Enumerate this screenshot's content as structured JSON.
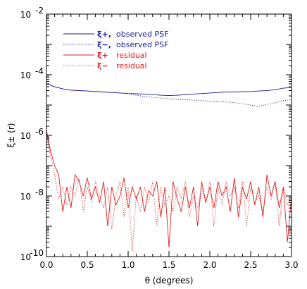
{
  "chart_data": {
    "type": "line",
    "xlabel": "θ (degrees)",
    "ylabel": "ξ± (r)",
    "xlim": [
      0,
      3
    ],
    "ylim": [
      1e-10,
      0.01
    ],
    "yscale": "log",
    "xticks": [
      "0.0",
      "0.5",
      "1.0",
      "1.5",
      "2.0",
      "2.5",
      "3.0"
    ],
    "yticks": [
      {
        "value": 1e-10,
        "label": "10",
        "exp": "-10"
      },
      {
        "value": 1e-08,
        "label": "10",
        "exp": "-8"
      },
      {
        "value": 1e-06,
        "label": "10",
        "exp": "-6"
      },
      {
        "value": 0.0001,
        "label": "10",
        "exp": "-4"
      },
      {
        "value": 0.01,
        "label": "10",
        "exp": "-2"
      }
    ],
    "legend_position": "top-left",
    "series": [
      {
        "name": "ξ+, observed PSF",
        "legend_symbol": "ξ+,",
        "legend_text": "observed PSF",
        "color": "#1a1aa0",
        "style": "solid",
        "x": [
          0.0,
          0.1,
          0.2,
          0.3,
          0.4,
          0.5,
          0.6,
          0.7,
          0.8,
          0.9,
          1.0,
          1.1,
          1.2,
          1.3,
          1.4,
          1.5,
          1.6,
          1.7,
          1.8,
          1.9,
          2.0,
          2.1,
          2.2,
          2.3,
          2.4,
          2.5,
          2.6,
          2.7,
          2.8,
          2.9,
          3.0
        ],
        "y": [
          5e-05,
          4e-05,
          3.4e-05,
          3.1e-05,
          3e-05,
          2.9e-05,
          2.8e-05,
          2.7e-05,
          2.6e-05,
          2.5e-05,
          2.4e-05,
          2.35e-05,
          2.3e-05,
          2.2e-05,
          2.1e-05,
          2.05e-05,
          2.1e-05,
          2.2e-05,
          2.3e-05,
          2.4e-05,
          2.5e-05,
          2.6e-05,
          2.7e-05,
          2.7e-05,
          2.75e-05,
          2.8e-05,
          2.9e-05,
          3e-05,
          3.2e-05,
          3.6e-05,
          3.8e-05
        ]
      },
      {
        "name": "ξ−, observed PSF",
        "legend_symbol": "ξ−,",
        "legend_text": "observed PSF",
        "color": "#1a1aa0",
        "style": "dotted",
        "x": [
          0.0,
          0.1,
          0.2,
          0.3,
          0.4,
          0.5,
          0.6,
          0.7,
          0.8,
          0.9,
          1.0,
          1.1,
          1.2,
          1.3,
          1.4,
          1.5,
          1.6,
          1.7,
          1.8,
          1.9,
          2.0,
          2.1,
          2.2,
          2.3,
          2.4,
          2.5,
          2.6,
          2.7,
          2.8,
          2.9,
          3.0
        ],
        "y": [
          5e-05,
          4e-05,
          3.4e-05,
          3.1e-05,
          3e-05,
          2.9e-05,
          2.8e-05,
          2.7e-05,
          2.6e-05,
          2.5e-05,
          2.4e-05,
          2.1e-05,
          1.9e-05,
          1.8e-05,
          1.7e-05,
          1.6e-05,
          1.55e-05,
          1.5e-05,
          1.45e-05,
          1.4e-05,
          1.35e-05,
          1.3e-05,
          1.25e-05,
          1.2e-05,
          1.1e-05,
          1e-05,
          9e-06,
          1.05e-05,
          1.2e-05,
          1.4e-05,
          1.5e-05
        ]
      },
      {
        "name": "ξ+ residual",
        "legend_symbol": "ξ+",
        "legend_text": "residual",
        "color": "#e02020",
        "style": "solid",
        "x": [
          0.0,
          0.05,
          0.1,
          0.15,
          0.2,
          0.25,
          0.3,
          0.35,
          0.4,
          0.45,
          0.5,
          0.55,
          0.6,
          0.65,
          0.7,
          0.75,
          0.8,
          0.85,
          0.9,
          0.95,
          1.0,
          1.05,
          1.1,
          1.15,
          1.2,
          1.25,
          1.3,
          1.35,
          1.4,
          1.45,
          1.5,
          1.55,
          1.6,
          1.65,
          1.7,
          1.75,
          1.8,
          1.85,
          1.9,
          1.95,
          2.0,
          2.05,
          2.1,
          2.15,
          2.2,
          2.25,
          2.3,
          2.35,
          2.4,
          2.45,
          2.5,
          2.55,
          2.6,
          2.65,
          2.7,
          2.75,
          2.8,
          2.85,
          2.9,
          2.95,
          3.0
        ],
        "y": [
          1.5e-06,
          3e-07,
          1e-07,
          5e-08,
          3e-09,
          2e-08,
          4e-09,
          5e-08,
          3e-08,
          1e-08,
          4e-08,
          8e-09,
          2e-08,
          6e-09,
          3e-08,
          1e-09,
          2e-08,
          5e-09,
          1e-08,
          4e-08,
          4e-09,
          2e-08,
          8e-09,
          2e-08,
          3e-09,
          1.5e-08,
          1e-08,
          3e-08,
          2e-09,
          2e-08,
          2e-10,
          3e-08,
          8e-09,
          3e-09,
          2e-08,
          4e-09,
          2e-08,
          1e-09,
          3e-08,
          6e-09,
          2e-08,
          4e-09,
          3e-08,
          1e-08,
          2e-08,
          3e-09,
          4e-08,
          2e-09,
          2e-08,
          8e-09,
          3e-08,
          5e-09,
          2e-08,
          2e-09,
          5e-08,
          1e-08,
          3e-08,
          4e-09,
          2e-08,
          3e-10,
          1e-08
        ]
      },
      {
        "name": "ξ− residual",
        "legend_symbol": "ξ−",
        "legend_text": "residual",
        "color": "#e02020",
        "style": "dotted",
        "x": [
          0.0,
          0.05,
          0.1,
          0.15,
          0.2,
          0.25,
          0.3,
          0.35,
          0.4,
          0.45,
          0.5,
          0.55,
          0.6,
          0.65,
          0.7,
          0.75,
          0.8,
          0.85,
          0.9,
          0.95,
          1.0,
          1.05,
          1.1,
          1.15,
          1.2,
          1.25,
          1.3,
          1.35,
          1.4,
          1.45,
          1.5,
          1.55,
          1.6,
          1.65,
          1.7,
          1.75,
          1.8,
          1.85,
          1.9,
          1.95,
          2.0,
          2.05,
          2.1,
          2.15,
          2.2,
          2.25,
          2.3,
          2.35,
          2.4,
          2.45,
          2.5,
          2.55,
          2.6,
          2.65,
          2.7,
          2.75,
          2.8,
          2.85,
          2.9,
          2.95,
          3.0
        ],
        "y": [
          1.5e-06,
          2e-07,
          5e-08,
          8e-09,
          2e-08,
          5e-09,
          2e-08,
          1e-08,
          4e-08,
          3e-09,
          2e-08,
          6e-09,
          3e-08,
          1e-08,
          4e-09,
          2e-08,
          8e-10,
          1e-08,
          3e-08,
          2e-09,
          2e-08,
          1.5e-10,
          1e-08,
          3e-09,
          2e-08,
          6e-09,
          3e-08,
          1e-09,
          2e-08,
          5e-09,
          1e-08,
          3e-09,
          2e-08,
          8e-09,
          3e-08,
          2e-09,
          1e-08,
          4e-09,
          2e-08,
          6e-09,
          3e-08,
          1e-09,
          2e-08,
          5e-09,
          3e-08,
          1e-08,
          2e-08,
          4e-09,
          3e-08,
          1e-09,
          2e-08,
          6e-09,
          1e-08,
          3e-09,
          2e-08,
          8e-09,
          3e-08,
          1e-09,
          2e-08,
          5e-09,
          1.2e-08
        ]
      }
    ]
  }
}
